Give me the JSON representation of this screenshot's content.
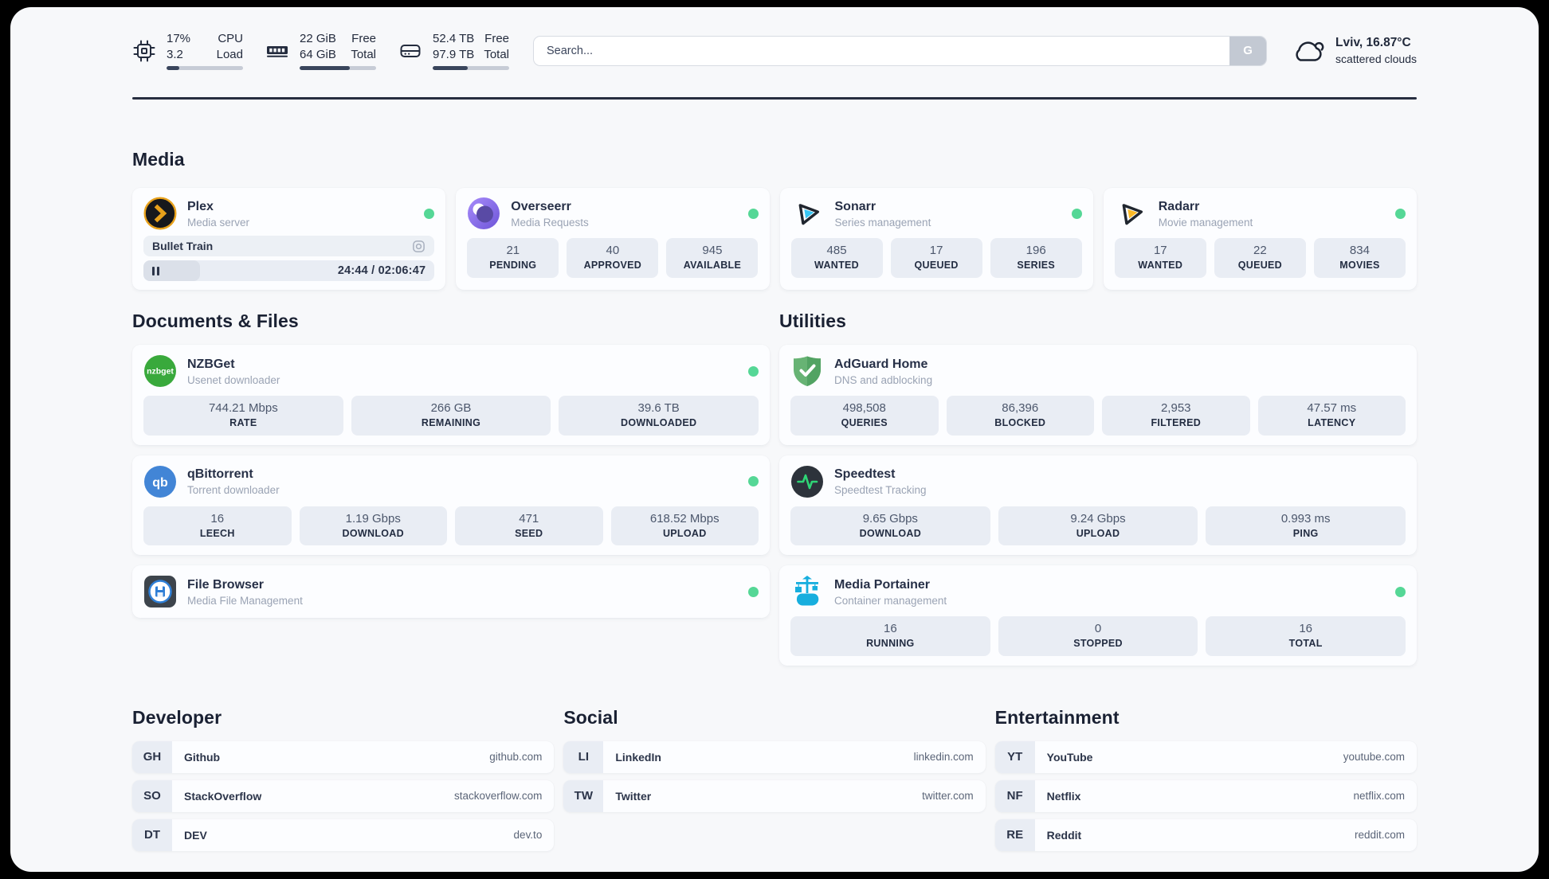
{
  "header": {
    "stats": [
      {
        "icon": "cpu",
        "value1": "17%",
        "value2": "3.2",
        "label1": "CPU",
        "label2": "Load",
        "progress_pct": 17
      },
      {
        "icon": "memory",
        "value1": "22 GiB",
        "value2": "64 GiB",
        "label1": "Free",
        "label2": "Total",
        "progress_pct": 66
      },
      {
        "icon": "disk",
        "value1": "52.4 TB",
        "value2": "97.9 TB",
        "label1": "Free",
        "label2": "Total",
        "progress_pct": 46
      }
    ],
    "search": {
      "placeholder": "Search...",
      "button_label": "G"
    },
    "weather": {
      "location": "Lviv, 16.87°C",
      "condition": "scattered clouds"
    }
  },
  "media": {
    "title": "Media",
    "apps": [
      {
        "name": "Plex",
        "subtitle": "Media server",
        "online": true,
        "now_playing": {
          "title": "Bullet Train",
          "time": "24:44 / 02:06:47",
          "progress_pct": 19.5
        }
      },
      {
        "name": "Overseerr",
        "subtitle": "Media Requests",
        "online": true,
        "stats": [
          {
            "value": "21",
            "label": "PENDING"
          },
          {
            "value": "40",
            "label": "APPROVED"
          },
          {
            "value": "945",
            "label": "AVAILABLE"
          }
        ]
      },
      {
        "name": "Sonarr",
        "subtitle": "Series management",
        "online": true,
        "stats": [
          {
            "value": "485",
            "label": "WANTED"
          },
          {
            "value": "17",
            "label": "QUEUED"
          },
          {
            "value": "196",
            "label": "SERIES"
          }
        ]
      },
      {
        "name": "Radarr",
        "subtitle": "Movie management",
        "online": true,
        "stats": [
          {
            "value": "17",
            "label": "WANTED"
          },
          {
            "value": "22",
            "label": "QUEUED"
          },
          {
            "value": "834",
            "label": "MOVIES"
          }
        ]
      }
    ]
  },
  "documents": {
    "title": "Documents & Files",
    "apps": [
      {
        "name": "NZBGet",
        "subtitle": "Usenet downloader",
        "online": true,
        "stats": [
          {
            "value": "744.21 Mbps",
            "label": "RATE"
          },
          {
            "value": "266 GB",
            "label": "REMAINING"
          },
          {
            "value": "39.6 TB",
            "label": "DOWNLOADED"
          }
        ]
      },
      {
        "name": "qBittorrent",
        "subtitle": "Torrent downloader",
        "online": true,
        "stats": [
          {
            "value": "16",
            "label": "LEECH"
          },
          {
            "value": "1.19 Gbps",
            "label": "DOWNLOAD"
          },
          {
            "value": "471",
            "label": "SEED"
          },
          {
            "value": "618.52 Mbps",
            "label": "UPLOAD"
          }
        ]
      },
      {
        "name": "File Browser",
        "subtitle": "Media File Management",
        "online": true
      }
    ]
  },
  "utilities": {
    "title": "Utilities",
    "apps": [
      {
        "name": "AdGuard Home",
        "subtitle": "DNS and adblocking",
        "stats": [
          {
            "value": "498,508",
            "label": "QUERIES"
          },
          {
            "value": "86,396",
            "label": "BLOCKED"
          },
          {
            "value": "2,953",
            "label": "FILTERED"
          },
          {
            "value": "47.57 ms",
            "label": "LATENCY"
          }
        ]
      },
      {
        "name": "Speedtest",
        "subtitle": "Speedtest Tracking",
        "stats": [
          {
            "value": "9.65 Gbps",
            "label": "DOWNLOAD"
          },
          {
            "value": "9.24 Gbps",
            "label": "UPLOAD"
          },
          {
            "value": "0.993 ms",
            "label": "PING"
          }
        ]
      },
      {
        "name": "Media Portainer",
        "subtitle": "Container management",
        "online": true,
        "stats": [
          {
            "value": "16",
            "label": "RUNNING"
          },
          {
            "value": "0",
            "label": "STOPPED"
          },
          {
            "value": "16",
            "label": "TOTAL"
          }
        ]
      }
    ]
  },
  "bookmarks": [
    {
      "title": "Developer",
      "links": [
        {
          "abbr": "GH",
          "name": "Github",
          "url": "github.com"
        },
        {
          "abbr": "SO",
          "name": "StackOverflow",
          "url": "stackoverflow.com"
        },
        {
          "abbr": "DT",
          "name": "DEV",
          "url": "dev.to"
        }
      ]
    },
    {
      "title": "Social",
      "links": [
        {
          "abbr": "LI",
          "name": "LinkedIn",
          "url": "linkedin.com"
        },
        {
          "abbr": "TW",
          "name": "Twitter",
          "url": "twitter.com"
        }
      ]
    },
    {
      "title": "Entertainment",
      "links": [
        {
          "abbr": "YT",
          "name": "YouTube",
          "url": "youtube.com"
        },
        {
          "abbr": "NF",
          "name": "Netflix",
          "url": "netflix.com"
        },
        {
          "abbr": "RE",
          "name": "Reddit",
          "url": "reddit.com"
        }
      ]
    }
  ],
  "colors": {
    "accent_green": "#55d796",
    "page_bg": "#f7f8fa",
    "tile_bg": "#e9edf4",
    "divider": "#272e40"
  }
}
